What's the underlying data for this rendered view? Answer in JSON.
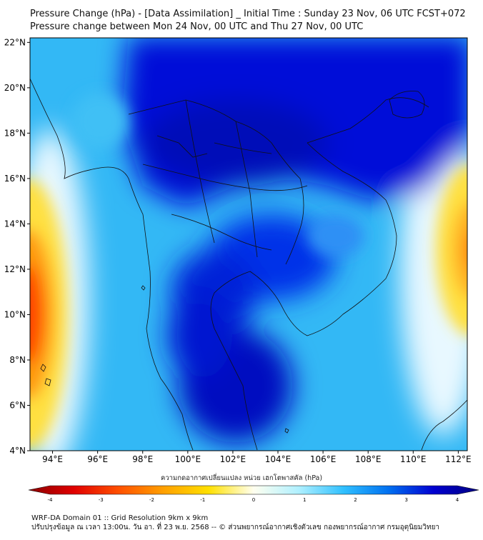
{
  "header": {
    "title": "Pressure Change (hPa) - [Data Assimilation] _ Initial Time : Sunday 23 Nov, 06 UTC FCST+072",
    "subtitle": "Pressure change between Mon 24 Nov, 00 UTC and Thu 27 Nov, 00 UTC"
  },
  "map": {
    "lat_labels": [
      "22°N",
      "20°N",
      "18°N",
      "16°N",
      "14°N",
      "12°N",
      "10°N",
      "8°N",
      "6°N",
      "4°N"
    ],
    "lon_labels": [
      "94°E",
      "96°E",
      "98°E",
      "100°E",
      "102°E",
      "104°E",
      "106°E",
      "108°E",
      "110°E",
      "112°E"
    ],
    "lat_values": [
      22,
      20,
      18,
      16,
      14,
      12,
      10,
      8,
      6,
      4
    ],
    "lon_values": [
      94,
      96,
      98,
      100,
      102,
      104,
      106,
      108,
      110,
      112
    ],
    "lat_range": [
      4,
      22.2
    ],
    "lon_range": [
      93,
      112.4
    ]
  },
  "colorbar": {
    "label": "ความกดอากาศเปลี่ยนแปลง หน่วย เฮกโตพาสคัล (hPa)",
    "ticks": [
      "-4",
      "-3",
      "-2",
      "-1",
      "0",
      "1",
      "2",
      "3",
      "4"
    ],
    "tick_values": [
      -4,
      -3,
      -2,
      -1,
      0,
      1,
      2,
      3,
      4
    ],
    "range": [
      -4,
      4
    ],
    "colors": [
      "#8b0000",
      "#e00000",
      "#ff5000",
      "#ffa000",
      "#ffe000",
      "#fffff0",
      "#b0f0ff",
      "#30c0ff",
      "#0070f0",
      "#0000d0",
      "#000080"
    ]
  },
  "footer": {
    "line1": "WRF-DA Domain 01 :: Grid Resolution 9km x 9km",
    "line2": "ปรับปรุงข้อมูล ณ เวลา 13:00น. วัน อา. ที่ 23 พ.ย. 2568 -- © ส่วนพยากรณ์อากาศเชิงตัวเลข กองพยากรณ์อากาศ กรมอุตุนิยมวิทยา"
  }
}
